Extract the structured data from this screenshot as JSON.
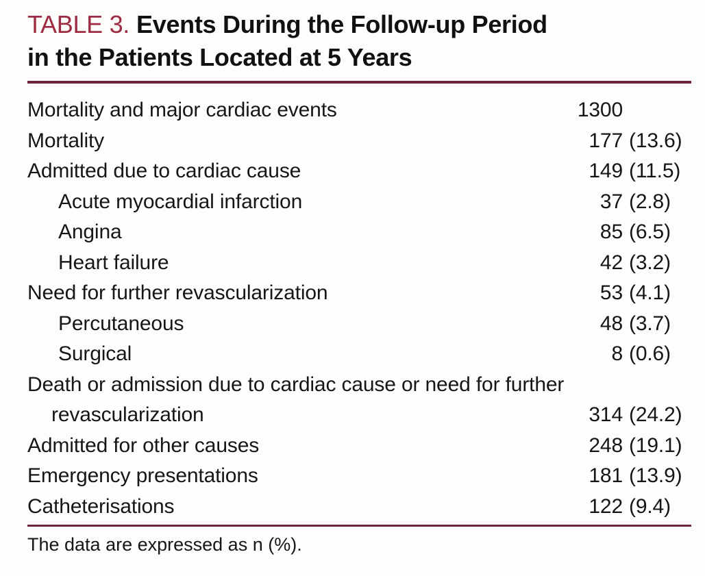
{
  "caption": {
    "label": "TABLE 3.",
    "title_line1": "Events During the Follow-up Period",
    "title_line2": "in the Patients Located at 5 Years"
  },
  "rows": [
    {
      "label": "Mortality and major cardiac events",
      "n": "1300",
      "pct": "",
      "indent": 0
    },
    {
      "label": "Mortality",
      "n": "177",
      "pct": "(13.6)",
      "indent": 0
    },
    {
      "label": "Admitted due to cardiac cause",
      "n": "149",
      "pct": "(11.5)",
      "indent": 0
    },
    {
      "label": "Acute myocardial infarction",
      "n": "37",
      "pct": "(2.8)",
      "indent": 1
    },
    {
      "label": "Angina",
      "n": "85",
      "pct": "(6.5)",
      "indent": 1
    },
    {
      "label": "Heart failure",
      "n": "42",
      "pct": "(3.2)",
      "indent": 1
    },
    {
      "label": "Need for further revascularization",
      "n": "53",
      "pct": "(4.1)",
      "indent": 0
    },
    {
      "label": "Percutaneous",
      "n": "48",
      "pct": "(3.7)",
      "indent": 1
    },
    {
      "label": "Surgical",
      "n": "8",
      "pct": "(0.6)",
      "indent": 1
    },
    {
      "label": "Death or admission due to cardiac cause or need for further revascularization",
      "n": "314",
      "pct": "(24.2)",
      "indent": 0
    },
    {
      "label": "Admitted for other causes",
      "n": "248",
      "pct": "(19.1)",
      "indent": 0
    },
    {
      "label": "Emergency presentations",
      "n": "181",
      "pct": "(13.9)",
      "indent": 0
    },
    {
      "label": "Catheterisations",
      "n": "122",
      "pct": "(9.4)",
      "indent": 0
    }
  ],
  "footnote": "The data are expressed as n (%).",
  "colors": {
    "caption_label": "#9e2b41",
    "rule": "#6f2240",
    "text": "#161616"
  }
}
